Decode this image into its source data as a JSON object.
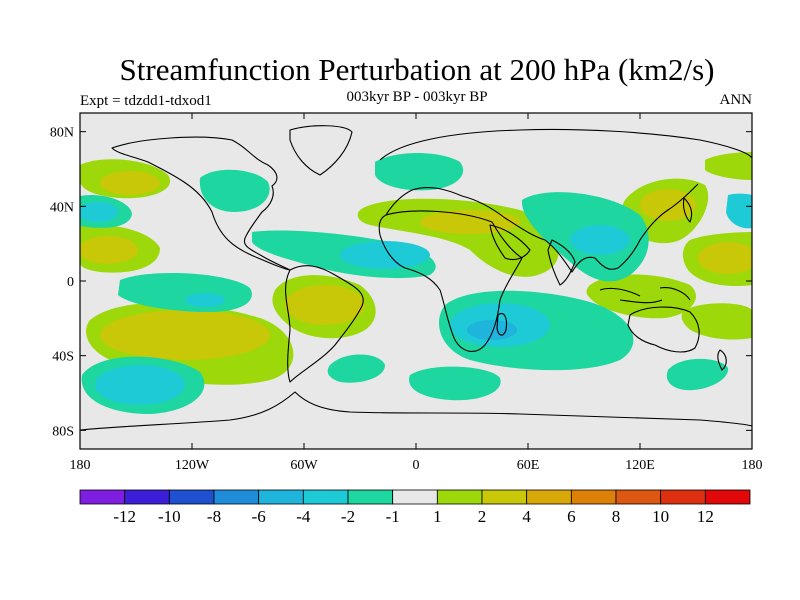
{
  "title": "Streamfunction Perturbation at 200 hPa (km2/s)",
  "expt_label": "Expt = tdzdd1-tdxod1",
  "period_label": "003kyr BP - 003kyr BP",
  "season_label": "ANN",
  "lat_ticks": [
    {
      "value": 80,
      "label": "80N"
    },
    {
      "value": 40,
      "label": "40N"
    },
    {
      "value": 0,
      "label": "0"
    },
    {
      "value": -40,
      "label": "40S"
    },
    {
      "value": -80,
      "label": "80S"
    }
  ],
  "lon_ticks": [
    {
      "value": -180,
      "label": "180"
    },
    {
      "value": -120,
      "label": "120W"
    },
    {
      "value": -60,
      "label": "60W"
    },
    {
      "value": 0,
      "label": "0"
    },
    {
      "value": 60,
      "label": "60E"
    },
    {
      "value": 120,
      "label": "120E"
    },
    {
      "value": 180,
      "label": "180"
    }
  ],
  "colorbar": {
    "colors": [
      "#7e1ee0",
      "#3c1ed8",
      "#1e50d0",
      "#1e8cd8",
      "#1eb4dc",
      "#1ecad6",
      "#1ed6a0",
      "#e8e8e8",
      "#9cd80a",
      "#c8c808",
      "#d8a808",
      "#dc8008",
      "#dc5810",
      "#dc3010",
      "#e00808"
    ],
    "labels": [
      "-12",
      "-10",
      "-8",
      "-6",
      "-4",
      "-2",
      "-1",
      "1",
      "2",
      "4",
      "6",
      "8",
      "10",
      "12"
    ]
  },
  "map_colors": {
    "background": "#e8e8e8",
    "light_pos": "#9cd80a",
    "mid_pos": "#c8c808",
    "light_neg": "#1ed6a0",
    "mid_neg": "#1ecad6",
    "strong_neg": "#1eb4dc"
  }
}
